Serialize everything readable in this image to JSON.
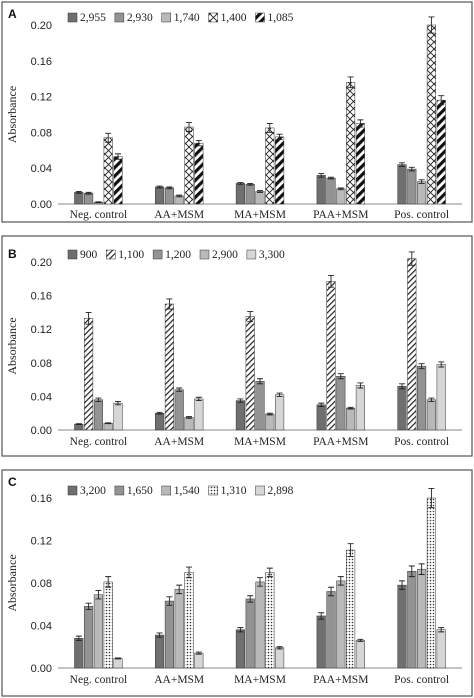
{
  "chart_data": [
    {
      "panel": "A",
      "type": "bar",
      "ylabel": "Absorbance",
      "ylim": [
        0,
        0.2
      ],
      "yticks": [
        "0.00",
        "0.04",
        "0.08",
        "0.12",
        "0.16",
        "0.20"
      ],
      "categories": [
        "Neg. control",
        "AA+MSM",
        "MA+MSM",
        "PAA+MSM",
        "Pos. control"
      ],
      "legend_placement": "top-left",
      "series": [
        {
          "name": "2,955",
          "style": "dark",
          "values": [
            0.013,
            0.019,
            0.023,
            0.032,
            0.044
          ],
          "errors": [
            0.001,
            0.001,
            0.001,
            0.002,
            0.002
          ]
        },
        {
          "name": "2,930",
          "style": "mid",
          "values": [
            0.012,
            0.018,
            0.022,
            0.029,
            0.039
          ],
          "errors": [
            0.001,
            0.001,
            0.001,
            0.001,
            0.002
          ]
        },
        {
          "name": "1,740",
          "style": "light",
          "values": [
            0.002,
            0.009,
            0.014,
            0.017,
            0.025
          ],
          "errors": [
            0.0005,
            0.001,
            0.001,
            0.001,
            0.002
          ]
        },
        {
          "name": "1,400",
          "style": "cross",
          "values": [
            0.074,
            0.086,
            0.085,
            0.136,
            0.2
          ],
          "errors": [
            0.005,
            0.005,
            0.005,
            0.006,
            0.009
          ]
        },
        {
          "name": "1,085",
          "style": "wide",
          "values": [
            0.053,
            0.068,
            0.075,
            0.09,
            0.116
          ],
          "errors": [
            0.003,
            0.003,
            0.003,
            0.004,
            0.005
          ]
        }
      ]
    },
    {
      "panel": "B",
      "type": "bar",
      "ylabel": "Absorbance",
      "ylim": [
        0,
        0.2
      ],
      "yticks": [
        "0.00",
        "0.04",
        "0.08",
        "0.12",
        "0.16",
        "0.20"
      ],
      "categories": [
        "Neg. control",
        "AA+MSM",
        "MA+MSM",
        "PAA+MSM",
        "Pos. control"
      ],
      "legend_placement": "top-left",
      "series": [
        {
          "name": "900",
          "style": "dark",
          "values": [
            0.007,
            0.02,
            0.035,
            0.03,
            0.052
          ],
          "errors": [
            0.0005,
            0.001,
            0.002,
            0.002,
            0.003
          ]
        },
        {
          "name": "1,100",
          "style": "diag",
          "values": [
            0.133,
            0.15,
            0.135,
            0.177,
            0.204
          ],
          "errors": [
            0.007,
            0.006,
            0.006,
            0.007,
            0.008
          ]
        },
        {
          "name": "1,200",
          "style": "mid",
          "values": [
            0.036,
            0.048,
            0.058,
            0.064,
            0.076
          ],
          "errors": [
            0.002,
            0.002,
            0.003,
            0.003,
            0.003
          ]
        },
        {
          "name": "2,900",
          "style": "light",
          "values": [
            0.008,
            0.015,
            0.019,
            0.026,
            0.036
          ],
          "errors": [
            0.0005,
            0.001,
            0.001,
            0.001,
            0.002
          ]
        },
        {
          "name": "3,300",
          "style": "pale",
          "values": [
            0.032,
            0.037,
            0.042,
            0.053,
            0.078
          ],
          "errors": [
            0.002,
            0.002,
            0.002,
            0.003,
            0.003
          ]
        }
      ]
    },
    {
      "panel": "C",
      "type": "bar",
      "ylabel": "Absorbance",
      "ylim": [
        0,
        0.16
      ],
      "yticks": [
        "0.00",
        "0.04",
        "0.08",
        "0.12",
        "0.16"
      ],
      "categories": [
        "Neg. control",
        "AA+MSM",
        "MA+MSM",
        "PAA+MSM",
        "Pos. control"
      ],
      "legend_placement": "top-left",
      "series": [
        {
          "name": "3,200",
          "style": "dark",
          "values": [
            0.028,
            0.031,
            0.036,
            0.049,
            0.078
          ],
          "errors": [
            0.002,
            0.002,
            0.002,
            0.003,
            0.004
          ]
        },
        {
          "name": "1,650",
          "style": "mid",
          "values": [
            0.058,
            0.063,
            0.065,
            0.072,
            0.091
          ],
          "errors": [
            0.003,
            0.004,
            0.003,
            0.004,
            0.005
          ]
        },
        {
          "name": "1,540",
          "style": "light",
          "values": [
            0.069,
            0.074,
            0.081,
            0.082,
            0.093
          ],
          "errors": [
            0.004,
            0.004,
            0.004,
            0.004,
            0.005
          ]
        },
        {
          "name": "1,310",
          "style": "dots",
          "values": [
            0.081,
            0.09,
            0.09,
            0.111,
            0.16
          ],
          "errors": [
            0.005,
            0.005,
            0.004,
            0.006,
            0.009
          ]
        },
        {
          "name": "2,898",
          "style": "pale",
          "values": [
            0.009,
            0.014,
            0.019,
            0.026,
            0.036
          ],
          "errors": [
            0.0005,
            0.001,
            0.001,
            0.001,
            0.002
          ]
        }
      ]
    }
  ],
  "colors": {
    "dark": "#6f6f6f",
    "mid": "#939393",
    "light": "#b9b9b9",
    "pale": "#d6d6d6",
    "hatch": "#111111"
  }
}
